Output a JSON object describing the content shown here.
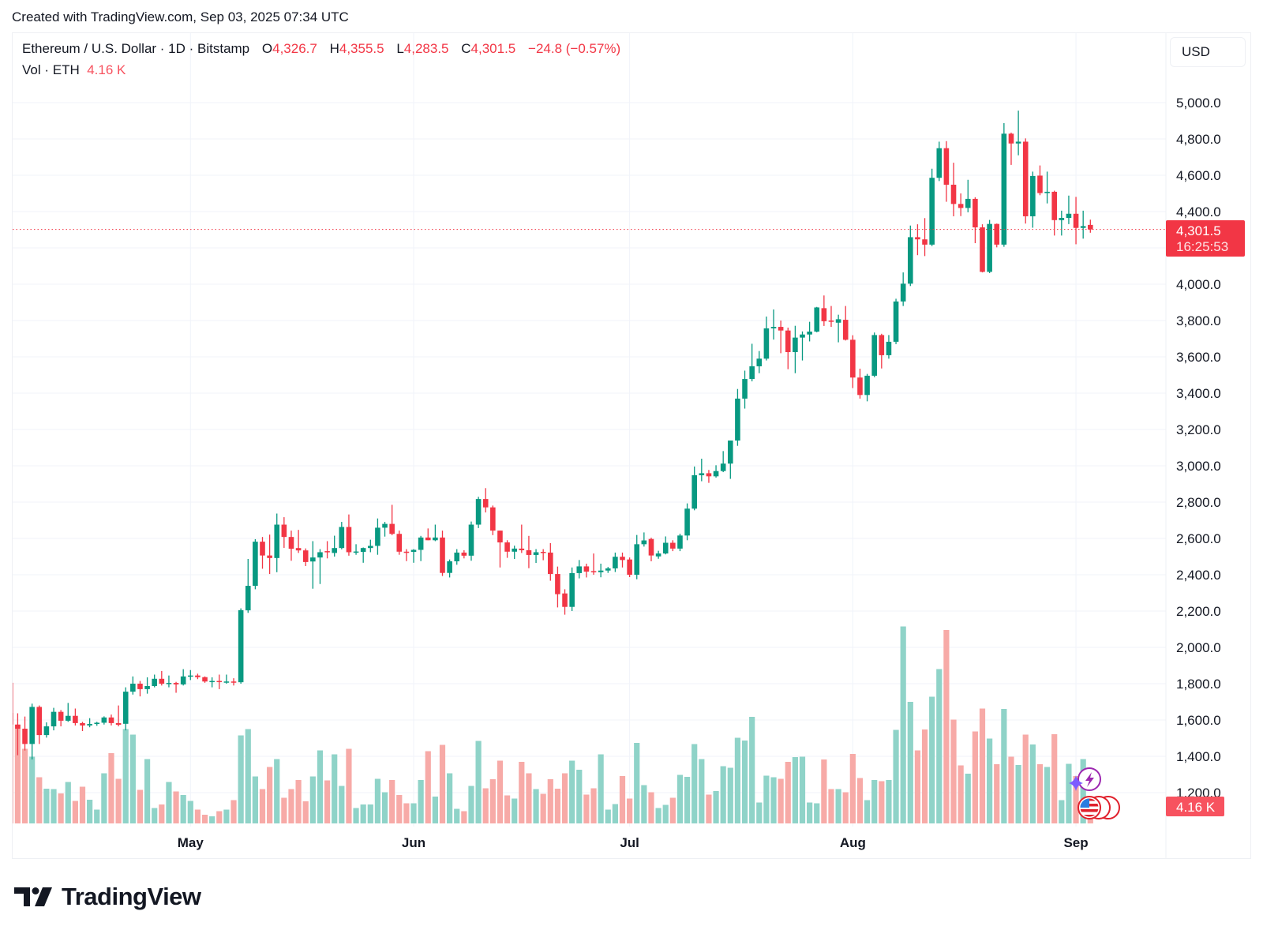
{
  "caption": "Created with TradingView.com, Sep 03, 2025 07:34 UTC",
  "legend": {
    "symbol": "Ethereum / U.S. Dollar · 1D · Bitstamp",
    "open_label": "O",
    "open": "4,326.7",
    "high_label": "H",
    "high": "4,355.5",
    "low_label": "L",
    "low": "4,283.5",
    "close_label": "C",
    "close": "4,301.5",
    "change": "−24.8 (−0.57%)",
    "volume_label": "Vol · ETH",
    "volume": "4.16 K"
  },
  "currency_button": "USD",
  "last_price": {
    "label": "4,301.5",
    "countdown": "16:25:53",
    "value": 4301.5
  },
  "last_volume_label": "4.16 K",
  "brand": "TradingView",
  "icons": [
    "lightning-event-icon",
    "sparkle-icon",
    "us-flag-economic-event-icon"
  ],
  "colors": {
    "up": "#089981",
    "down": "#f23645",
    "volume_up": "#8fd3c8",
    "volume_down": "#f7aaa7",
    "grid": "#f0f3fa"
  },
  "chart_data": {
    "type": "candlestick",
    "title": "Ethereum / U.S. Dollar · 1D · Bitstamp",
    "y_ticks": [
      5000,
      4800,
      4600,
      4400,
      4000,
      3800,
      3600,
      3400,
      3200,
      3000,
      2800,
      2600,
      2400,
      2200,
      2000,
      1800,
      1600,
      1400,
      1200
    ],
    "y_tick_labels": [
      "5,000.0",
      "4,800.0",
      "4,600.0",
      "4,400.0",
      "4,000.0",
      "3,800.0",
      "3,600.0",
      "3,400.0",
      "3,200.0",
      "3,000.0",
      "2,800.0",
      "2,600.0",
      "2,400.0",
      "2,200.0",
      "2,000.0",
      "1,800.0",
      "1,600.0",
      "1,400.0",
      "1,200.0"
    ],
    "ylim": [
      1200,
      5000
    ],
    "x_ticks": [
      {
        "label": "May",
        "date": "2025-05-01"
      },
      {
        "label": "Jun",
        "date": "2025-06-01"
      },
      {
        "label": "Jul",
        "date": "2025-07-01"
      },
      {
        "label": "Aug",
        "date": "2025-08-01"
      },
      {
        "label": "Sep",
        "date": "2025-09-01"
      }
    ],
    "grid": true,
    "volume_unit": "K ETH",
    "dates": [
      "2025-04-06",
      "2025-04-07",
      "2025-04-08",
      "2025-04-09",
      "2025-04-10",
      "2025-04-11",
      "2025-04-12",
      "2025-04-13",
      "2025-04-14",
      "2025-04-15",
      "2025-04-16",
      "2025-04-17",
      "2025-04-18",
      "2025-04-19",
      "2025-04-20",
      "2025-04-21",
      "2025-04-22",
      "2025-04-23",
      "2025-04-24",
      "2025-04-25",
      "2025-04-26",
      "2025-04-27",
      "2025-04-28",
      "2025-04-29",
      "2025-04-30",
      "2025-05-01",
      "2025-05-02",
      "2025-05-03",
      "2025-05-04",
      "2025-05-05",
      "2025-05-06",
      "2025-05-07",
      "2025-05-08",
      "2025-05-09",
      "2025-05-10",
      "2025-05-11",
      "2025-05-12",
      "2025-05-13",
      "2025-05-14",
      "2025-05-15",
      "2025-05-16",
      "2025-05-17",
      "2025-05-18",
      "2025-05-19",
      "2025-05-20",
      "2025-05-21",
      "2025-05-22",
      "2025-05-23",
      "2025-05-24",
      "2025-05-25",
      "2025-05-26",
      "2025-05-27",
      "2025-05-28",
      "2025-05-29",
      "2025-05-30",
      "2025-05-31",
      "2025-06-01",
      "2025-06-02",
      "2025-06-03",
      "2025-06-04",
      "2025-06-05",
      "2025-06-06",
      "2025-06-07",
      "2025-06-08",
      "2025-06-09",
      "2025-06-10",
      "2025-06-11",
      "2025-06-12",
      "2025-06-13",
      "2025-06-14",
      "2025-06-15",
      "2025-06-16",
      "2025-06-17",
      "2025-06-18",
      "2025-06-19",
      "2025-06-20",
      "2025-06-21",
      "2025-06-22",
      "2025-06-23",
      "2025-06-24",
      "2025-06-25",
      "2025-06-26",
      "2025-06-27",
      "2025-06-28",
      "2025-06-29",
      "2025-06-30",
      "2025-07-01",
      "2025-07-02",
      "2025-07-03",
      "2025-07-04",
      "2025-07-05",
      "2025-07-06",
      "2025-07-07",
      "2025-07-08",
      "2025-07-09",
      "2025-07-10",
      "2025-07-11",
      "2025-07-12",
      "2025-07-13",
      "2025-07-14",
      "2025-07-15",
      "2025-07-16",
      "2025-07-17",
      "2025-07-18",
      "2025-07-19",
      "2025-07-20",
      "2025-07-21",
      "2025-07-22",
      "2025-07-23",
      "2025-07-24",
      "2025-07-25",
      "2025-07-26",
      "2025-07-27",
      "2025-07-28",
      "2025-07-29",
      "2025-07-30",
      "2025-07-31",
      "2025-08-01",
      "2025-08-02",
      "2025-08-03",
      "2025-08-04",
      "2025-08-05",
      "2025-08-06",
      "2025-08-07",
      "2025-08-08",
      "2025-08-09",
      "2025-08-10",
      "2025-08-11",
      "2025-08-12",
      "2025-08-13",
      "2025-08-14",
      "2025-08-15",
      "2025-08-16",
      "2025-08-17",
      "2025-08-18",
      "2025-08-19",
      "2025-08-20",
      "2025-08-21",
      "2025-08-22",
      "2025-08-23",
      "2025-08-24",
      "2025-08-25",
      "2025-08-26",
      "2025-08-27",
      "2025-08-28",
      "2025-08-29",
      "2025-08-30",
      "2025-08-31",
      "2025-09-01",
      "2025-09-02",
      "2025-09-03"
    ],
    "ohlc": [
      [
        1805,
        1815,
        1560,
        1575
      ],
      [
        1575,
        1637,
        1406,
        1552
      ],
      [
        1552,
        1619,
        1432,
        1468
      ],
      [
        1468,
        1690,
        1383,
        1672
      ],
      [
        1672,
        1680,
        1468,
        1517
      ],
      [
        1517,
        1587,
        1503,
        1565
      ],
      [
        1565,
        1667,
        1543,
        1645
      ],
      [
        1645,
        1655,
        1565,
        1596
      ],
      [
        1596,
        1694,
        1590,
        1623
      ],
      [
        1623,
        1663,
        1570,
        1583
      ],
      [
        1583,
        1590,
        1539,
        1570
      ],
      [
        1570,
        1610,
        1560,
        1578
      ],
      [
        1578,
        1590,
        1568,
        1585
      ],
      [
        1585,
        1620,
        1575,
        1614
      ],
      [
        1614,
        1630,
        1570,
        1583
      ],
      [
        1583,
        1680,
        1565,
        1574
      ],
      [
        1579,
        1780,
        1543,
        1756
      ],
      [
        1756,
        1840,
        1740,
        1800
      ],
      [
        1800,
        1815,
        1730,
        1770
      ],
      [
        1770,
        1835,
        1745,
        1787
      ],
      [
        1787,
        1850,
        1780,
        1827
      ],
      [
        1827,
        1870,
        1790,
        1800
      ],
      [
        1800,
        1845,
        1780,
        1804
      ],
      [
        1804,
        1810,
        1750,
        1796
      ],
      [
        1796,
        1880,
        1790,
        1840
      ],
      [
        1840,
        1875,
        1820,
        1845
      ],
      [
        1845,
        1855,
        1825,
        1836
      ],
      [
        1836,
        1840,
        1805,
        1812
      ],
      [
        1812,
        1835,
        1780,
        1815
      ],
      [
        1815,
        1850,
        1770,
        1810
      ],
      [
        1810,
        1850,
        1800,
        1812
      ],
      [
        1812,
        1830,
        1790,
        1808
      ],
      [
        1808,
        2215,
        1800,
        2205
      ],
      [
        2204,
        2487,
        2190,
        2339
      ],
      [
        2339,
        2596,
        2320,
        2582
      ],
      [
        2582,
        2608,
        2433,
        2506
      ],
      [
        2506,
        2621,
        2404,
        2492
      ],
      [
        2492,
        2737,
        2414,
        2676
      ],
      [
        2676,
        2717,
        2548,
        2608
      ],
      [
        2608,
        2643,
        2477,
        2543
      ],
      [
        2547,
        2647,
        2520,
        2534
      ],
      [
        2534,
        2545,
        2448,
        2470
      ],
      [
        2473,
        2585,
        2323,
        2495
      ],
      [
        2495,
        2541,
        2349,
        2524
      ],
      [
        2530,
        2585,
        2490,
        2525
      ],
      [
        2520,
        2615,
        2500,
        2547
      ],
      [
        2547,
        2691,
        2540,
        2663
      ],
      [
        2663,
        2732,
        2505,
        2524
      ],
      [
        2524,
        2568,
        2510,
        2528
      ],
      [
        2526,
        2550,
        2466,
        2547
      ],
      [
        2547,
        2593,
        2524,
        2559
      ],
      [
        2559,
        2710,
        2510,
        2659
      ],
      [
        2659,
        2691,
        2610,
        2680
      ],
      [
        2680,
        2785,
        2618,
        2625
      ],
      [
        2625,
        2643,
        2510,
        2527
      ],
      [
        2527,
        2541,
        2475,
        2526
      ],
      [
        2526,
        2541,
        2466,
        2537
      ],
      [
        2537,
        2614,
        2475,
        2605
      ],
      [
        2605,
        2655,
        2590,
        2590
      ],
      [
        2590,
        2676,
        2585,
        2605
      ],
      [
        2605,
        2643,
        2393,
        2410
      ],
      [
        2410,
        2484,
        2385,
        2474
      ],
      [
        2474,
        2541,
        2455,
        2522
      ],
      [
        2522,
        2535,
        2490,
        2505
      ],
      [
        2505,
        2693,
        2477,
        2676
      ],
      [
        2676,
        2829,
        2657,
        2817
      ],
      [
        2817,
        2877,
        2743,
        2771
      ],
      [
        2771,
        2781,
        2618,
        2643
      ],
      [
        2643,
        2643,
        2440,
        2578
      ],
      [
        2578,
        2590,
        2493,
        2527
      ],
      [
        2527,
        2560,
        2487,
        2544
      ],
      [
        2544,
        2676,
        2520,
        2535
      ],
      [
        2535,
        2614,
        2436,
        2509
      ],
      [
        2509,
        2541,
        2465,
        2524
      ],
      [
        2526,
        2541,
        2480,
        2522
      ],
      [
        2522,
        2574,
        2367,
        2404
      ],
      [
        2404,
        2445,
        2220,
        2293
      ],
      [
        2297,
        2320,
        2180,
        2223
      ],
      [
        2223,
        2440,
        2200,
        2409
      ],
      [
        2409,
        2481,
        2380,
        2446
      ],
      [
        2446,
        2461,
        2385,
        2417
      ],
      [
        2420,
        2517,
        2400,
        2414
      ],
      [
        2414,
        2461,
        2386,
        2423
      ],
      [
        2423,
        2443,
        2410,
        2435
      ],
      [
        2435,
        2522,
        2415,
        2499
      ],
      [
        2499,
        2522,
        2440,
        2481
      ],
      [
        2484,
        2495,
        2387,
        2400
      ],
      [
        2400,
        2619,
        2375,
        2568
      ],
      [
        2568,
        2633,
        2555,
        2589
      ],
      [
        2597,
        2604,
        2474,
        2506
      ],
      [
        2501,
        2532,
        2488,
        2517
      ],
      [
        2517,
        2611,
        2512,
        2576
      ],
      [
        2576,
        2590,
        2530,
        2544
      ],
      [
        2544,
        2626,
        2530,
        2616
      ],
      [
        2616,
        2793,
        2590,
        2764
      ],
      [
        2764,
        2996,
        2755,
        2948
      ],
      [
        2948,
        3039,
        2915,
        2959
      ],
      [
        2959,
        2977,
        2906,
        2942
      ],
      [
        2942,
        3003,
        2935,
        2971
      ],
      [
        2971,
        3081,
        2965,
        3012
      ],
      [
        3012,
        3139,
        2928,
        3139
      ],
      [
        3139,
        3423,
        3110,
        3370
      ],
      [
        3370,
        3524,
        3315,
        3478
      ],
      [
        3478,
        3672,
        3465,
        3548
      ],
      [
        3548,
        3632,
        3510,
        3590
      ],
      [
        3590,
        3822,
        3580,
        3757
      ],
      [
        3757,
        3861,
        3695,
        3765
      ],
      [
        3765,
        3800,
        3620,
        3745
      ],
      [
        3745,
        3761,
        3532,
        3626
      ],
      [
        3626,
        3771,
        3510,
        3706
      ],
      [
        3706,
        3740,
        3580,
        3723
      ],
      [
        3723,
        3793,
        3685,
        3739
      ],
      [
        3739,
        3875,
        3735,
        3872
      ],
      [
        3868,
        3938,
        3770,
        3796
      ],
      [
        3800,
        3880,
        3765,
        3793
      ],
      [
        3788,
        3832,
        3680,
        3807
      ],
      [
        3804,
        3880,
        3690,
        3694
      ],
      [
        3694,
        3719,
        3428,
        3486
      ],
      [
        3486,
        3535,
        3370,
        3390
      ],
      [
        3390,
        3506,
        3355,
        3496
      ],
      [
        3496,
        3734,
        3488,
        3720
      ],
      [
        3720,
        3727,
        3536,
        3609
      ],
      [
        3609,
        3720,
        3590,
        3683
      ],
      [
        3683,
        3920,
        3670,
        3905
      ],
      [
        3905,
        4065,
        3880,
        4003
      ],
      [
        4003,
        4323,
        3990,
        4259
      ],
      [
        4259,
        4330,
        4160,
        4247
      ],
      [
        4247,
        4364,
        4155,
        4218
      ],
      [
        4218,
        4636,
        4210,
        4586
      ],
      [
        4586,
        4785,
        4568,
        4749
      ],
      [
        4749,
        4788,
        4454,
        4548
      ],
      [
        4548,
        4669,
        4374,
        4442
      ],
      [
        4442,
        4500,
        4375,
        4420
      ],
      [
        4420,
        4575,
        4396,
        4470
      ],
      [
        4470,
        4479,
        4226,
        4313
      ],
      [
        4313,
        4330,
        4065,
        4068
      ],
      [
        4068,
        4354,
        4061,
        4332
      ],
      [
        4332,
        4334,
        4203,
        4218
      ],
      [
        4218,
        4887,
        4206,
        4829
      ],
      [
        4829,
        4835,
        4657,
        4775
      ],
      [
        4775,
        4956,
        4710,
        4785
      ],
      [
        4785,
        4803,
        4334,
        4374
      ],
      [
        4374,
        4620,
        4311,
        4596
      ],
      [
        4598,
        4654,
        4490,
        4502
      ],
      [
        4502,
        4620,
        4445,
        4509
      ],
      [
        4509,
        4515,
        4268,
        4353
      ],
      [
        4353,
        4405,
        4268,
        4365
      ],
      [
        4365,
        4488,
        4331,
        4388
      ],
      [
        4388,
        4481,
        4220,
        4310
      ],
      [
        4310,
        4405,
        4251,
        4320
      ],
      [
        4326.7,
        4355.5,
        4283.5,
        4301.5
      ]
    ],
    "volume": [
      28.0,
      25.0,
      18.9,
      16.9,
      11.7,
      8.8,
      8.7,
      7.6,
      10.5,
      5.7,
      9.3,
      6.0,
      3.5,
      12.7,
      17.8,
      11.3,
      23.9,
      22.5,
      8.5,
      16.3,
      3.9,
      4.8,
      10.5,
      8.1,
      7.2,
      5.7,
      3.5,
      2.2,
      1.8,
      3.1,
      3.5,
      5.9,
      22.3,
      23.9,
      11.9,
      8.7,
      14.3,
      16.3,
      6.5,
      8.7,
      11.0,
      5.6,
      11.9,
      18.5,
      10.9,
      17.5,
      9.5,
      18.9,
      3.9,
      4.8,
      4.8,
      11.3,
      7.9,
      11.0,
      7.2,
      5.1,
      5.1,
      11.0,
      18.3,
      6.8,
      19.9,
      12.7,
      3.7,
      3.1,
      9.5,
      20.9,
      8.9,
      11.2,
      15.9,
      7.1,
      6.3,
      15.6,
      12.7,
      8.7,
      7.5,
      11.2,
      8.8,
      12.7,
      15.9,
      13.6,
      7.3,
      8.9,
      17.5,
      3.5,
      4.9,
      12.0,
      6.3,
      20.4,
      9.7,
      7.9,
      3.9,
      4.7,
      6.5,
      12.3,
      11.8,
      20.1,
      16.3,
      7.3,
      8.2,
      14.5,
      14.1,
      21.7,
      21.0,
      27.0,
      5.3,
      12.1,
      11.7,
      11.3,
      15.6,
      16.8,
      16.9,
      5.3,
      5.1,
      16.2,
      8.7,
      8.7,
      7.9,
      17.6,
      11.5,
      5.9,
      11.0,
      10.7,
      11.0,
      23.7,
      49.9,
      30.8,
      18.5,
      23.8,
      32.1,
      39.1,
      49.0,
      26.3,
      14.7,
      12.6,
      23.3,
      29.1,
      21.5,
      15.0,
      29.0,
      16.9,
      14.8,
      22.5,
      20.0,
      15.0,
      14.3,
      22.6,
      5.9,
      15.1,
      12.0,
      16.3,
      4.16
    ]
  }
}
